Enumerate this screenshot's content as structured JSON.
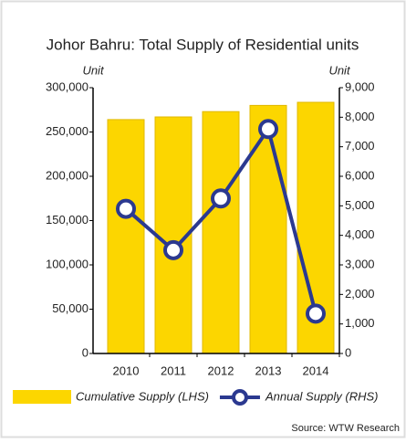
{
  "chart_data": {
    "type": "bar_line",
    "title": "Johor Bahru: Total Supply of Residential units",
    "y_axis_label": "Unit",
    "y2_axis_label": "Unit",
    "categories": [
      "2010",
      "2011",
      "2012",
      "2013",
      "2014"
    ],
    "series": [
      {
        "name": "Cumulative Supply (LHS)",
        "type": "bar",
        "color": "#fcd600",
        "values": [
          264000,
          267000,
          273000,
          280000,
          283500
        ]
      },
      {
        "name": "Annual Supply (RHS)",
        "type": "line",
        "axis": "y2",
        "color": "#2b3990",
        "values": [
          4900,
          3500,
          5250,
          7600,
          1350
        ]
      }
    ],
    "ylim": [
      0,
      300000
    ],
    "yticks": [
      0,
      {
        "value": 50000,
        "label": "50,000"
      },
      {
        "value": 100000,
        "label": "100,000"
      },
      {
        "value": 150000,
        "label": "150,000"
      },
      {
        "value": 200000,
        "label": "200,000"
      },
      {
        "value": 250000,
        "label": "250,000"
      },
      {
        "value": 300000,
        "label": "300,000"
      }
    ],
    "y2lim": [
      0,
      9000
    ],
    "y2ticks": [
      0,
      {
        "value": 1000,
        "label": "1,000"
      },
      {
        "value": 2000,
        "label": "2,000"
      },
      {
        "value": 3000,
        "label": "3,000"
      },
      {
        "value": 4000,
        "label": "4,000"
      },
      {
        "value": 5000,
        "label": "5,000"
      },
      {
        "value": 6000,
        "label": "6,000"
      },
      {
        "value": 7000,
        "label": "7,000"
      },
      {
        "value": 8000,
        "label": "8,000"
      },
      {
        "value": 9000,
        "label": "9,000"
      }
    ],
    "source": "Source: WTW Research"
  }
}
